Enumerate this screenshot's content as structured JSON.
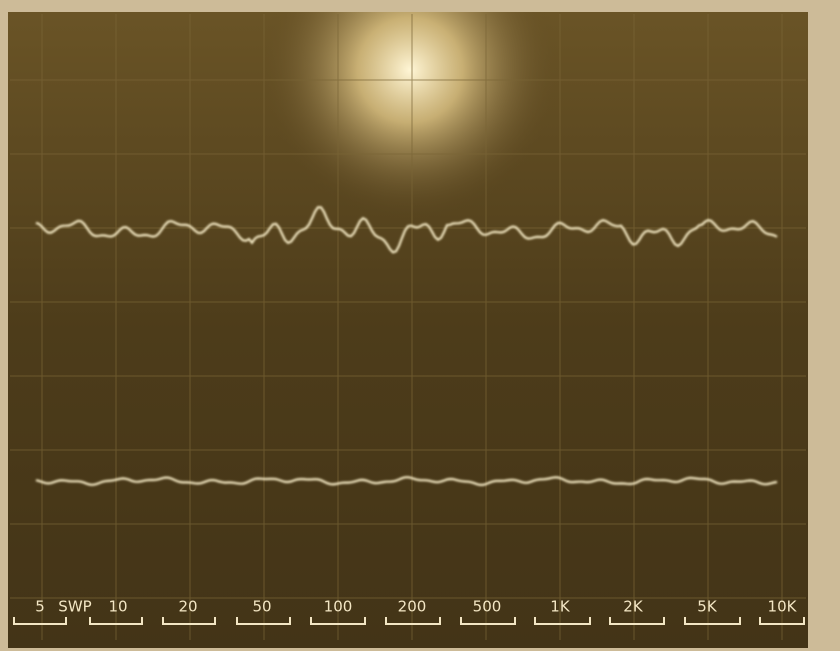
{
  "scale_labels": [
    "5",
    "SWP",
    "10",
    "20",
    "50",
    "100",
    "200",
    "500",
    "1K",
    "2K",
    "5K",
    "10K"
  ]
}
